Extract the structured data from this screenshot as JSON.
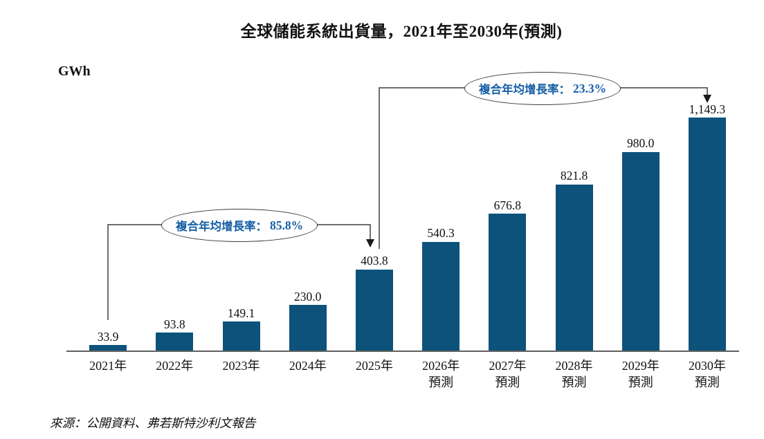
{
  "page": {
    "title": "全球儲能系統出貨量，2021年至2030年(預測)",
    "unit_label": "GWh",
    "source": "來源：公開資料、弗若斯特沙利文報告"
  },
  "annotations": [
    {
      "label": "複合年均增長率：",
      "value": "85.8%",
      "from": "2021年",
      "to": "2025年"
    },
    {
      "label": "複合年均增長率：",
      "value": "23.3%",
      "from": "2025年",
      "to": "2030年"
    }
  ],
  "colors": {
    "bar": "#0d527b",
    "annotation_text": "#1660a6",
    "connector_line": "#3f3f3f",
    "arrow": "#1a1a1a",
    "axis_line": "#5f5f5f"
  },
  "chart_data": {
    "type": "bar",
    "title": "全球儲能系統出貨量，2021年至2030年(預測)",
    "ylabel": "GWh",
    "xlabel": "",
    "ylim": [
      0,
      1200
    ],
    "grid": false,
    "legend": "none",
    "categories": [
      "2021年",
      "2022年",
      "2023年",
      "2024年",
      "2025年",
      "2026年",
      "2027年",
      "2028年",
      "2029年",
      "2030年"
    ],
    "category_sublabels": [
      "",
      "",
      "",
      "",
      "",
      "預測",
      "預測",
      "預測",
      "預測",
      "預測"
    ],
    "values": [
      33.9,
      93.8,
      149.1,
      230.0,
      403.8,
      540.3,
      676.8,
      821.8,
      980.0,
      1149.3
    ],
    "value_labels": [
      "33.9",
      "93.8",
      "149.1",
      "230.0",
      "403.8",
      "540.3",
      "676.8",
      "821.8",
      "980.0",
      "1,149.3"
    ],
    "annotations": [
      {
        "text": "複合年均增長率：85.8%",
        "span": "2021年–2025年"
      },
      {
        "text": "複合年均增長率： 23.3%",
        "span": "2025年–2030年"
      }
    ],
    "source": "來源：公開資料、弗若斯特沙利文報告"
  }
}
